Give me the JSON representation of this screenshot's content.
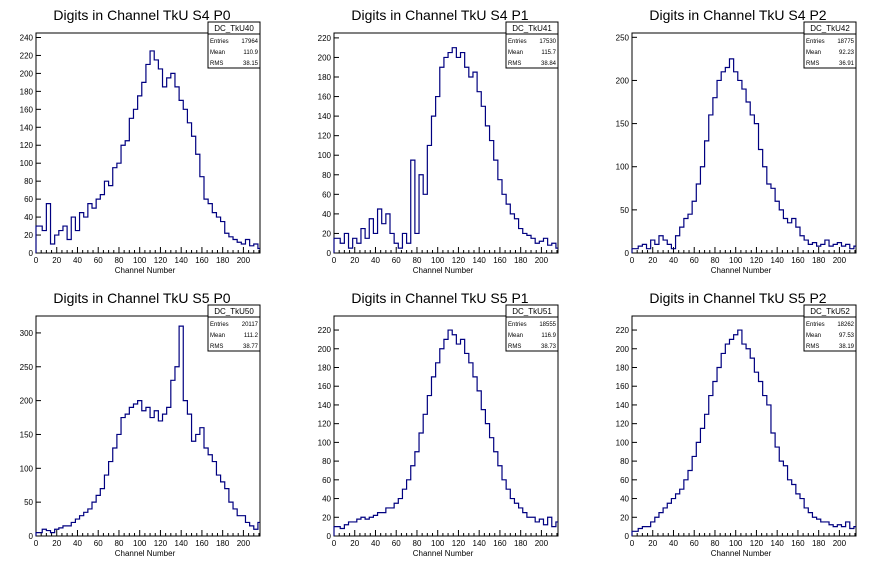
{
  "colors": {
    "line": "#000080",
    "axis": "#000000",
    "background": "#ffffff"
  },
  "chart_data": [
    {
      "type": "histogram",
      "title": "Digits in Channel TkU S4 P0",
      "xlabel": "Channel Number",
      "xlim": [
        0,
        216
      ],
      "ylim": [
        0,
        245
      ],
      "xticks": [
        0,
        20,
        40,
        60,
        80,
        100,
        120,
        140,
        160,
        180,
        200
      ],
      "yticks": [
        0,
        20,
        40,
        60,
        80,
        100,
        120,
        140,
        160,
        180,
        200,
        220,
        240
      ],
      "stats": {
        "name": "DC_TkU40",
        "rows": [
          [
            "Entries",
            "17964"
          ],
          [
            "Mean",
            "110.9"
          ],
          [
            "RMS",
            "38.15"
          ]
        ]
      },
      "x": [
        0,
        6,
        10,
        14,
        18,
        22,
        26,
        30,
        34,
        38,
        42,
        46,
        50,
        54,
        58,
        62,
        66,
        70,
        74,
        78,
        82,
        86,
        90,
        94,
        98,
        102,
        106,
        110,
        114,
        118,
        122,
        126,
        130,
        134,
        138,
        142,
        146,
        150,
        154,
        158,
        162,
        166,
        170,
        174,
        178,
        182,
        186,
        190,
        194,
        198,
        202,
        206,
        210,
        214
      ],
      "y": [
        30,
        25,
        55,
        10,
        20,
        25,
        30,
        15,
        40,
        25,
        45,
        40,
        55,
        50,
        60,
        65,
        80,
        75,
        95,
        100,
        120,
        125,
        150,
        160,
        175,
        190,
        210,
        225,
        215,
        205,
        185,
        195,
        200,
        185,
        170,
        160,
        145,
        130,
        110,
        85,
        60,
        55,
        45,
        40,
        35,
        22,
        18,
        15,
        12,
        10,
        15,
        8,
        10,
        5
      ]
    },
    {
      "type": "histogram",
      "title": "Digits in Channel TkU S4 P1",
      "xlabel": "Channel Number",
      "xlim": [
        0,
        216
      ],
      "ylim": [
        0,
        225
      ],
      "xticks": [
        0,
        20,
        40,
        60,
        80,
        100,
        120,
        140,
        160,
        180,
        200
      ],
      "yticks": [
        0,
        20,
        40,
        60,
        80,
        100,
        120,
        140,
        160,
        180,
        200,
        220
      ],
      "stats": {
        "name": "DC_TkU41",
        "rows": [
          [
            "Entries",
            "17530"
          ],
          [
            "Mean",
            "115.7"
          ],
          [
            "RMS",
            "38.84"
          ]
        ]
      },
      "x": [
        0,
        6,
        10,
        14,
        18,
        22,
        26,
        30,
        34,
        38,
        42,
        46,
        50,
        54,
        58,
        62,
        66,
        70,
        74,
        78,
        82,
        86,
        90,
        94,
        98,
        102,
        106,
        110,
        114,
        118,
        122,
        126,
        130,
        134,
        138,
        142,
        146,
        150,
        154,
        158,
        162,
        166,
        170,
        174,
        178,
        182,
        186,
        190,
        194,
        198,
        202,
        206,
        210,
        214
      ],
      "y": [
        15,
        10,
        20,
        5,
        15,
        10,
        25,
        15,
        35,
        20,
        45,
        30,
        40,
        20,
        10,
        5,
        20,
        10,
        95,
        20,
        80,
        60,
        110,
        140,
        160,
        190,
        200,
        205,
        210,
        200,
        205,
        190,
        180,
        185,
        165,
        150,
        130,
        115,
        95,
        75,
        60,
        50,
        40,
        35,
        25,
        20,
        18,
        15,
        10,
        12,
        15,
        8,
        10,
        5
      ]
    },
    {
      "type": "histogram",
      "title": "Digits in Channel TkU S4 P2",
      "xlabel": "Channel Number",
      "xlim": [
        0,
        216
      ],
      "ylim": [
        0,
        255
      ],
      "xticks": [
        0,
        20,
        40,
        60,
        80,
        100,
        120,
        140,
        160,
        180,
        200
      ],
      "yticks": [
        0,
        50,
        100,
        150,
        200,
        250
      ],
      "stats": {
        "name": "DC_TkU42",
        "rows": [
          [
            "Entries",
            "18775"
          ],
          [
            "Mean",
            "92.23"
          ],
          [
            "RMS",
            "36.91"
          ]
        ]
      },
      "x": [
        0,
        6,
        10,
        14,
        18,
        22,
        26,
        30,
        34,
        38,
        42,
        46,
        50,
        54,
        58,
        62,
        66,
        70,
        74,
        78,
        82,
        86,
        90,
        94,
        98,
        102,
        106,
        110,
        114,
        118,
        122,
        126,
        130,
        134,
        138,
        142,
        146,
        150,
        154,
        158,
        162,
        166,
        170,
        174,
        178,
        182,
        186,
        190,
        194,
        198,
        202,
        206,
        210,
        214
      ],
      "y": [
        5,
        8,
        10,
        5,
        15,
        10,
        20,
        15,
        10,
        5,
        20,
        30,
        40,
        45,
        60,
        80,
        100,
        130,
        160,
        180,
        200,
        210,
        215,
        225,
        210,
        200,
        190,
        175,
        160,
        150,
        120,
        100,
        80,
        75,
        60,
        50,
        40,
        35,
        40,
        30,
        20,
        15,
        10,
        12,
        8,
        10,
        15,
        8,
        10,
        12,
        8,
        10,
        5,
        8
      ]
    },
    {
      "type": "histogram",
      "title": "Digits in Channel TkU S5 P0",
      "xlabel": "Channel Number",
      "xlim": [
        0,
        216
      ],
      "ylim": [
        0,
        325
      ],
      "xticks": [
        0,
        20,
        40,
        60,
        80,
        100,
        120,
        140,
        160,
        180,
        200
      ],
      "yticks": [
        0,
        50,
        100,
        150,
        200,
        250,
        300
      ],
      "stats": {
        "name": "DC_TkU50",
        "rows": [
          [
            "Entries",
            "20117"
          ],
          [
            "Mean",
            "111.2"
          ],
          [
            "RMS",
            "38.77"
          ]
        ]
      },
      "x": [
        0,
        6,
        10,
        14,
        18,
        22,
        26,
        30,
        34,
        38,
        42,
        46,
        50,
        54,
        58,
        62,
        66,
        70,
        74,
        78,
        82,
        86,
        90,
        94,
        98,
        102,
        106,
        110,
        114,
        118,
        122,
        126,
        130,
        134,
        138,
        142,
        146,
        150,
        154,
        158,
        162,
        166,
        170,
        174,
        178,
        182,
        186,
        190,
        194,
        198,
        202,
        206,
        210,
        214
      ],
      "y": [
        5,
        10,
        8,
        5,
        10,
        12,
        15,
        15,
        20,
        25,
        30,
        35,
        40,
        50,
        60,
        70,
        90,
        110,
        130,
        150,
        175,
        180,
        190,
        195,
        200,
        185,
        190,
        175,
        185,
        170,
        180,
        190,
        230,
        250,
        310,
        200,
        180,
        140,
        150,
        160,
        130,
        120,
        110,
        90,
        80,
        70,
        50,
        40,
        30,
        30,
        20,
        15,
        10,
        20
      ]
    },
    {
      "type": "histogram",
      "title": "Digits in Channel TkU S5 P1",
      "xlabel": "Channel Number",
      "xlim": [
        0,
        216
      ],
      "ylim": [
        0,
        235
      ],
      "xticks": [
        0,
        20,
        40,
        60,
        80,
        100,
        120,
        140,
        160,
        180,
        200
      ],
      "yticks": [
        0,
        20,
        40,
        60,
        80,
        100,
        120,
        140,
        160,
        180,
        200,
        220
      ],
      "stats": {
        "name": "DC_TkU51",
        "rows": [
          [
            "Entries",
            "18555"
          ],
          [
            "Mean",
            "116.9"
          ],
          [
            "RMS",
            "38.73"
          ]
        ]
      },
      "x": [
        0,
        6,
        10,
        14,
        18,
        22,
        26,
        30,
        34,
        38,
        42,
        46,
        50,
        54,
        58,
        62,
        66,
        70,
        74,
        78,
        82,
        86,
        90,
        94,
        98,
        102,
        106,
        110,
        114,
        118,
        122,
        126,
        130,
        134,
        138,
        142,
        146,
        150,
        154,
        158,
        162,
        166,
        170,
        174,
        178,
        182,
        186,
        190,
        194,
        198,
        202,
        206,
        210,
        214
      ],
      "y": [
        10,
        8,
        12,
        15,
        15,
        18,
        20,
        18,
        20,
        22,
        25,
        25,
        30,
        30,
        35,
        40,
        50,
        60,
        75,
        90,
        110,
        130,
        150,
        170,
        185,
        200,
        210,
        220,
        215,
        205,
        210,
        195,
        185,
        170,
        155,
        135,
        120,
        105,
        90,
        75,
        60,
        50,
        40,
        35,
        30,
        25,
        20,
        20,
        15,
        18,
        12,
        20,
        10,
        15
      ]
    },
    {
      "type": "histogram",
      "title": "Digits in Channel TkU S5 P2",
      "xlabel": "Channel Number",
      "xlim": [
        0,
        216
      ],
      "ylim": [
        0,
        235
      ],
      "xticks": [
        0,
        20,
        40,
        60,
        80,
        100,
        120,
        140,
        160,
        180,
        200
      ],
      "yticks": [
        0,
        20,
        40,
        60,
        80,
        100,
        120,
        140,
        160,
        180,
        200,
        220
      ],
      "stats": {
        "name": "DC_TkU52",
        "rows": [
          [
            "Entries",
            "18262"
          ],
          [
            "Mean",
            "97.53"
          ],
          [
            "RMS",
            "38.19"
          ]
        ]
      },
      "x": [
        0,
        6,
        10,
        14,
        18,
        22,
        26,
        30,
        34,
        38,
        42,
        46,
        50,
        54,
        58,
        62,
        66,
        70,
        74,
        78,
        82,
        86,
        90,
        94,
        98,
        102,
        106,
        110,
        114,
        118,
        122,
        126,
        130,
        134,
        138,
        142,
        146,
        150,
        154,
        158,
        162,
        166,
        170,
        174,
        178,
        182,
        186,
        190,
        194,
        198,
        202,
        206,
        210,
        214
      ],
      "y": [
        5,
        8,
        10,
        10,
        15,
        20,
        25,
        30,
        35,
        40,
        45,
        50,
        60,
        70,
        85,
        100,
        115,
        130,
        150,
        165,
        180,
        195,
        205,
        210,
        215,
        220,
        205,
        200,
        190,
        175,
        165,
        150,
        140,
        110,
        95,
        80,
        75,
        60,
        55,
        45,
        40,
        30,
        25,
        20,
        18,
        15,
        15,
        12,
        10,
        12,
        10,
        15,
        8,
        10
      ]
    }
  ]
}
